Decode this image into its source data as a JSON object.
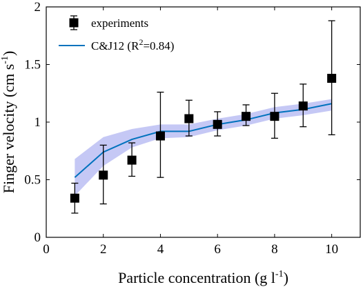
{
  "chart_data": {
    "type": "scatter",
    "xlabel": "Particle concentration (g l",
    "xlabel_sup": "-1",
    "xlabel_end": ")",
    "ylabel": "Finger velocity (cm s",
    "ylabel_sup": "-1",
    "ylabel_end": ")",
    "xlim": [
      0,
      11
    ],
    "ylim": [
      0,
      2
    ],
    "xticks": [
      0,
      2,
      4,
      6,
      8,
      10
    ],
    "yticks": [
      0,
      0.5,
      1,
      1.5,
      2
    ],
    "xtick_labels": [
      "0",
      "2",
      "4",
      "6",
      "8",
      "10"
    ],
    "ytick_labels": [
      "0",
      "0.5",
      "1",
      "1.5",
      "2"
    ],
    "grid": false,
    "legend_position": "top-left",
    "series": [
      {
        "name": "experiments",
        "kind": "errorbar",
        "color": "#000000",
        "x": [
          1,
          2,
          3,
          4,
          5,
          6,
          7,
          8,
          9,
          10
        ],
        "y": [
          0.34,
          0.54,
          0.67,
          0.88,
          1.03,
          0.98,
          1.05,
          1.05,
          1.14,
          1.38
        ],
        "err_low": [
          0.21,
          0.29,
          0.53,
          0.52,
          0.88,
          0.88,
          0.97,
          0.86,
          0.96,
          0.89
        ],
        "err_high": [
          0.47,
          0.8,
          0.82,
          1.26,
          1.19,
          1.09,
          1.15,
          1.25,
          1.33,
          1.88
        ]
      },
      {
        "name": "C&J12 (R",
        "name_sup": "2",
        "name_end": "=0.84)",
        "kind": "line_band",
        "color": "#0072BD",
        "band_color": "#c5c8f5",
        "x": [
          1,
          2,
          3,
          4,
          5,
          6,
          7,
          8,
          9,
          10
        ],
        "y": [
          0.52,
          0.74,
          0.85,
          0.92,
          0.92,
          0.98,
          1.02,
          1.08,
          1.11,
          1.16
        ],
        "band_low": [
          0.36,
          0.62,
          0.78,
          0.86,
          0.87,
          0.93,
          0.97,
          1.03,
          1.06,
          1.1
        ],
        "band_high": [
          0.68,
          0.87,
          0.94,
          0.98,
          0.98,
          1.03,
          1.07,
          1.13,
          1.16,
          1.2
        ]
      }
    ]
  }
}
